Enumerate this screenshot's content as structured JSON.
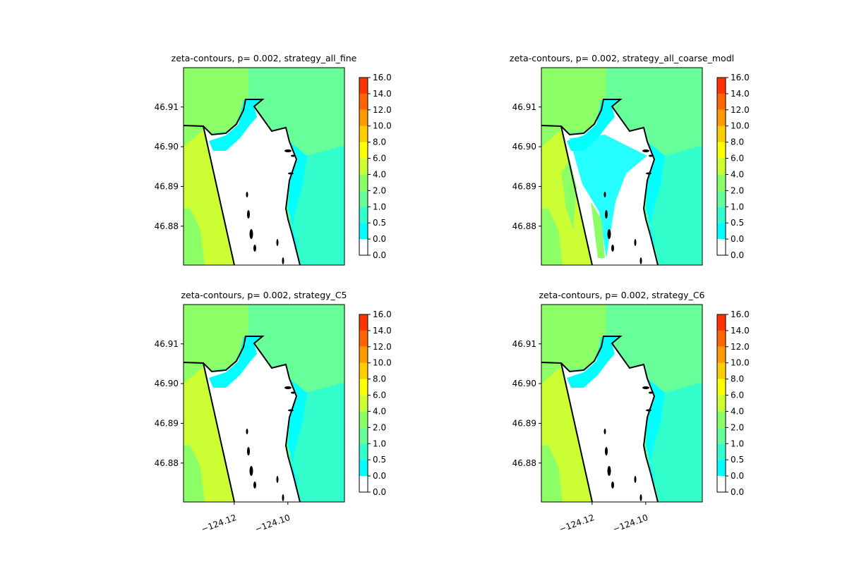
{
  "chart_data": [
    {
      "type": "contour",
      "title": "zeta-contours, p= 0.002, strategy_all_fine",
      "xlim": [
        -124.1389,
        -124.0789
      ],
      "ylim": [
        46.8702,
        46.9199
      ],
      "yticks": [
        46.88,
        46.89,
        {
          "value": 46.9,
          "label": "46.90"
        },
        46.91
      ],
      "colorbar": {
        "ticks": [
          {
            "value": 0,
            "label": "0.0"
          },
          {
            "value": 0,
            "label": "0.0"
          },
          0.5,
          {
            "value": 1,
            "label": "1.0"
          },
          {
            "value": 2,
            "label": "2.0"
          },
          {
            "value": 4,
            "label": "4.0"
          },
          {
            "value": 6,
            "label": "6.0"
          },
          {
            "value": 8,
            "label": "8.0"
          },
          {
            "value": 10,
            "label": "10.0"
          },
          {
            "value": 12,
            "label": "12.0"
          },
          {
            "value": 14,
            "label": "14.0"
          },
          {
            "value": 16,
            "label": "16.0"
          }
        ],
        "colors": [
          "#ffffff",
          "#00ffff",
          "#33ffcc",
          "#66ff99",
          "#8cff66",
          "#ccff33",
          "#ffff00",
          "#ffcc00",
          "#ff9900",
          "#ff6600",
          "#ff3300",
          "#ff0000"
        ]
      }
    },
    {
      "type": "contour",
      "title": "zeta-contours, p= 0.002, strategy_all_coarse_modl",
      "xlim": [
        -124.1389,
        -124.0789
      ],
      "ylim": [
        46.8702,
        46.9199
      ],
      "yticks": [
        46.88,
        46.89,
        {
          "value": 46.9,
          "label": "46.90"
        },
        46.91
      ],
      "colorbar": {
        "ticks": [
          {
            "value": 0,
            "label": "0.0"
          },
          {
            "value": 0,
            "label": "0.0"
          },
          0.5,
          {
            "value": 1,
            "label": "1.0"
          },
          {
            "value": 2,
            "label": "2.0"
          },
          {
            "value": 4,
            "label": "4.0"
          },
          {
            "value": 6,
            "label": "6.0"
          },
          {
            "value": 8,
            "label": "8.0"
          },
          {
            "value": 10,
            "label": "10.0"
          },
          {
            "value": 12,
            "label": "12.0"
          },
          {
            "value": 14,
            "label": "14.0"
          },
          {
            "value": 16,
            "label": "16.0"
          }
        ],
        "colors": [
          "#ffffff",
          "#00ffff",
          "#33ffcc",
          "#66ff99",
          "#8cff66",
          "#ccff33",
          "#ffff00",
          "#ffcc00",
          "#ff9900",
          "#ff6600",
          "#ff3300",
          "#ff0000"
        ]
      }
    },
    {
      "type": "contour",
      "title": "zeta-contours, p= 0.002, strategy_C5",
      "xlim": [
        -124.1389,
        -124.0789
      ],
      "ylim": [
        46.8702,
        46.9199
      ],
      "xticks": [
        {
          "value": -124.12,
          "label": "−124.12"
        },
        {
          "value": -124.1,
          "label": "−124.10"
        }
      ],
      "yticks": [
        46.88,
        46.89,
        {
          "value": 46.9,
          "label": "46.90"
        },
        46.91
      ],
      "colorbar": {
        "ticks": [
          {
            "value": 0,
            "label": "0.0"
          },
          {
            "value": 0,
            "label": "0.0"
          },
          0.5,
          {
            "value": 1,
            "label": "1.0"
          },
          {
            "value": 2,
            "label": "2.0"
          },
          {
            "value": 4,
            "label": "4.0"
          },
          {
            "value": 6,
            "label": "6.0"
          },
          {
            "value": 8,
            "label": "8.0"
          },
          {
            "value": 10,
            "label": "10.0"
          },
          {
            "value": 12,
            "label": "12.0"
          },
          {
            "value": 14,
            "label": "14.0"
          },
          {
            "value": 16,
            "label": "16.0"
          }
        ],
        "colors": [
          "#ffffff",
          "#00ffff",
          "#33ffcc",
          "#66ff99",
          "#8cff66",
          "#ccff33",
          "#ffff00",
          "#ffcc00",
          "#ff9900",
          "#ff6600",
          "#ff3300",
          "#ff0000"
        ]
      }
    },
    {
      "type": "contour",
      "title": "zeta-contours, p= 0.002, strategy_C6",
      "xlim": [
        -124.1389,
        -124.0789
      ],
      "ylim": [
        46.8702,
        46.9199
      ],
      "xticks": [
        {
          "value": -124.12,
          "label": "−124.12"
        },
        {
          "value": -124.1,
          "label": "−124.10"
        }
      ],
      "yticks": [
        46.88,
        46.89,
        {
          "value": 46.9,
          "label": "46.90"
        },
        46.91
      ],
      "colorbar": {
        "ticks": [
          {
            "value": 0,
            "label": "0.0"
          },
          {
            "value": 0,
            "label": "0.0"
          },
          0.5,
          {
            "value": 1,
            "label": "1.0"
          },
          {
            "value": 2,
            "label": "2.0"
          },
          {
            "value": 4,
            "label": "4.0"
          },
          {
            "value": 6,
            "label": "6.0"
          },
          {
            "value": 8,
            "label": "8.0"
          },
          {
            "value": 10,
            "label": "10.0"
          },
          {
            "value": 12,
            "label": "12.0"
          },
          {
            "value": 14,
            "label": "14.0"
          },
          {
            "value": 16,
            "label": "16.0"
          }
        ],
        "colors": [
          "#ffffff",
          "#00ffff",
          "#33ffcc",
          "#66ff99",
          "#8cff66",
          "#ccff33",
          "#ffff00",
          "#ffcc00",
          "#ff9900",
          "#ff6600",
          "#ff3300",
          "#ff0000"
        ]
      }
    }
  ]
}
